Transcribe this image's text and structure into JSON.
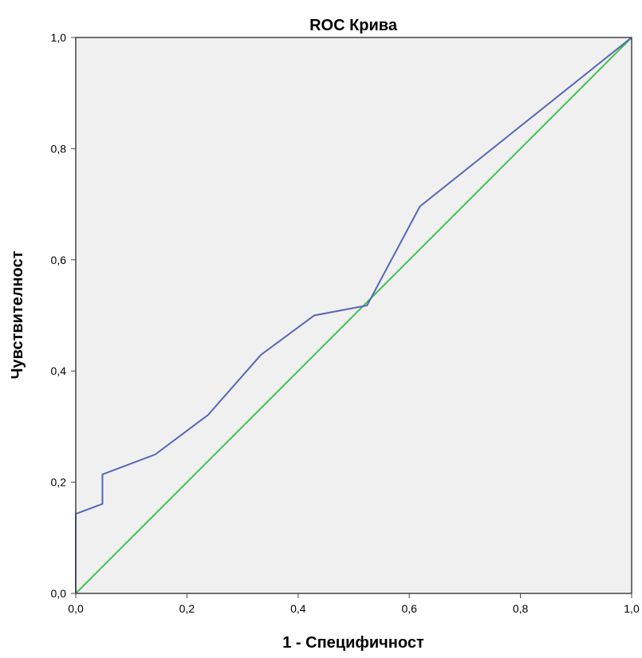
{
  "chart_data": {
    "type": "line",
    "title": "ROC Крива",
    "xlabel": "1 - Специфичност",
    "ylabel": "Чувствителност",
    "xlim": [
      0,
      1
    ],
    "ylim": [
      0,
      1
    ],
    "x_ticks": [
      "0,0",
      "0,2",
      "0,4",
      "0,6",
      "0,8",
      "1,0"
    ],
    "y_ticks": [
      "0,0",
      "0,2",
      "0,4",
      "0,6",
      "0,8",
      "1,0"
    ],
    "grid": false,
    "series": [
      {
        "color": "#5566b8",
        "points": [
          [
            0,
            0
          ],
          [
            0,
            0.143
          ],
          [
            0.048,
            0.161
          ],
          [
            0.048,
            0.214
          ],
          [
            0.143,
            0.25
          ],
          [
            0.238,
            0.321
          ],
          [
            0.333,
            0.429
          ],
          [
            0.429,
            0.5
          ],
          [
            0.524,
            0.518
          ],
          [
            0.619,
            0.696
          ],
          [
            1.0,
            1.0
          ]
        ]
      },
      {
        "color": "#3ec14e",
        "points": [
          [
            0,
            0
          ],
          [
            1,
            1
          ]
        ]
      }
    ],
    "colors": {
      "plot_background": "#f0f0f0",
      "frame": "#444444"
    }
  }
}
